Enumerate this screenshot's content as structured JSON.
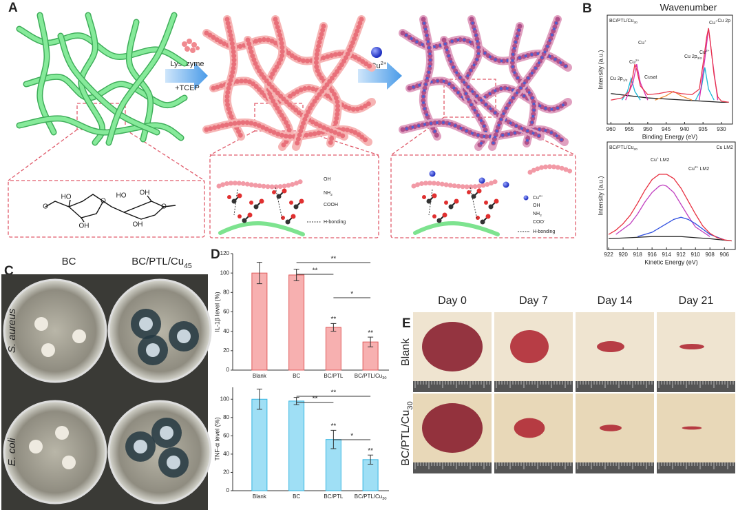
{
  "panel_a": {
    "label": "A",
    "reagent1": "Lysozyme",
    "reagent2": "+TCEP",
    "reagent3": [
      {
        "text": "Cu"
      },
      {
        "text": "2+",
        "pos": "sup"
      }
    ],
    "inset1_atoms": [
      "O",
      "HO",
      "OH",
      "O",
      "HO",
      "OH",
      "O",
      "OH"
    ],
    "inset2_legend": [
      "OH",
      [
        {
          "text": "NH"
        },
        {
          "text": "2",
          "pos": "sub"
        }
      ],
      "COOH",
      "H-bonding"
    ],
    "inset3_legend": [
      [
        {
          "text": "Cu"
        },
        {
          "text": "2+",
          "pos": "sup"
        }
      ],
      "OH",
      [
        {
          "text": "NH"
        },
        {
          "text": "2",
          "pos": "sub"
        }
      ],
      [
        {
          "text": "COO"
        },
        {
          "text": "-",
          "pos": "sup"
        }
      ],
      "H-bonding"
    ]
  },
  "panel_b": {
    "label": "B",
    "title": "Wavenumber"
  },
  "panel_c": {
    "label": "C",
    "columns": [
      "BC",
      [
        {
          "text": "BC/PTL/Cu"
        },
        {
          "text": "45",
          "pos": "sub"
        }
      ]
    ],
    "rows": [
      "S. aureus",
      "E. coli"
    ]
  },
  "panel_d": {
    "label": "D"
  },
  "panel_e": {
    "label": "E",
    "columns": [
      "Day 0",
      "Day 7",
      "Day 14",
      "Day 21"
    ],
    "rows": [
      "Blank",
      [
        {
          "text": "BC/PTL/Cu"
        },
        {
          "text": "30",
          "pos": "sub"
        }
      ]
    ]
  },
  "chart_data": [
    {
      "type": "line",
      "title": [
        {
          "text": "BC/PTL/Cu"
        },
        {
          "text": "30",
          "pos": "sub"
        }
      ],
      "subtitle": "Cu 2p",
      "xlabel": "Binding Energy (eV)",
      "ylabel": "Intensity (a.u.)",
      "xlim": [
        961,
        927
      ],
      "xticks": [
        960,
        955,
        950,
        945,
        940,
        935,
        930
      ],
      "ylim": [
        0,
        100
      ],
      "annotations": [
        [
          {
            "text": "Cu 2p"
          },
          {
            "text": "1/2",
            "pos": "sub"
          }
        ],
        [
          {
            "text": "Cu"
          },
          {
            "text": "2+",
            "pos": "sup"
          }
        ],
        [
          {
            "text": "Cu"
          },
          {
            "text": "+",
            "pos": "sup"
          }
        ],
        "Cusat",
        [
          {
            "text": "Cu 2p"
          },
          {
            "text": "3/2",
            "pos": "sub"
          }
        ],
        [
          {
            "text": "Cu"
          },
          {
            "text": "2+",
            "pos": "sup"
          }
        ],
        [
          {
            "text": "Cu"
          },
          {
            "text": "+",
            "pos": "sup"
          }
        ]
      ],
      "series": [
        {
          "color": "#222222",
          "x": [
            960,
            950,
            940,
            935,
            930,
            928
          ],
          "values": [
            28,
            24,
            22,
            21,
            20,
            20
          ]
        },
        {
          "color": "#19b6d6",
          "x": [
            957,
            955.5,
            954.5,
            953.5,
            952,
            945,
            937,
            935.5,
            934.5,
            933.5,
            932
          ],
          "values": [
            22,
            30,
            42,
            30,
            22,
            null,
            22,
            32,
            52,
            32,
            22
          ]
        },
        {
          "color": "#d62bb0",
          "x": [
            956,
            954,
            953,
            952,
            950,
            945,
            936,
            934.5,
            933.5,
            932.5,
            931
          ],
          "values": [
            22,
            38,
            55,
            38,
            22,
            null,
            22,
            60,
            88,
            60,
            22
          ]
        },
        {
          "color": "#f08a30",
          "x": [
            948,
            945,
            943,
            941,
            938
          ],
          "values": [
            22,
            26,
            30,
            26,
            22
          ]
        },
        {
          "color": "#e8344a",
          "x": [
            960,
            957,
            955,
            954,
            953.5,
            953,
            952,
            950,
            947,
            944,
            941,
            938,
            936,
            935,
            934,
            933.5,
            933,
            932,
            931,
            930,
            928
          ],
          "values": [
            22,
            24,
            30,
            45,
            55,
            50,
            35,
            27,
            28,
            30,
            28,
            27,
            32,
            55,
            80,
            88,
            75,
            45,
            25,
            21,
            20
          ]
        }
      ]
    },
    {
      "type": "line",
      "title": [
        {
          "text": "BC/PTL/Cu"
        },
        {
          "text": "20",
          "pos": "sub"
        }
      ],
      "subtitle": "Cu LM2",
      "xlabel": "Kinetic Energy (eV)",
      "ylabel": "Intensity (a.u.)",
      "xlim": [
        922.2,
        904.5
      ],
      "xticks": [
        922,
        920,
        918,
        916,
        914,
        912,
        910,
        908,
        906
      ],
      "ylim": [
        0,
        100
      ],
      "annotations": [
        [
          {
            "text": "Cu"
          },
          {
            "text": "+",
            "pos": "sup"
          },
          {
            "text": " LM2"
          }
        ],
        [
          {
            "text": "Cu"
          },
          {
            "text": "2+",
            "pos": "sup"
          },
          {
            "text": " LM2"
          }
        ]
      ],
      "series": [
        {
          "color": "#222222",
          "x": [
            922,
            916,
            912,
            908,
            905
          ],
          "values": [
            10,
            12,
            12,
            10,
            8
          ]
        },
        {
          "color": "#c040c0",
          "x": [
            921,
            919,
            918,
            917,
            916,
            915,
            914.5,
            914,
            913,
            912,
            911,
            910,
            908
          ],
          "values": [
            14,
            24,
            33,
            44,
            53,
            59,
            60,
            59,
            53,
            42,
            31,
            21,
            12
          ]
        },
        {
          "color": "#3050e0",
          "x": [
            918,
            916,
            914,
            913,
            912,
            911,
            910,
            908,
            906
          ],
          "values": [
            12,
            16,
            24,
            28,
            30,
            28,
            24,
            14,
            9
          ]
        },
        {
          "color": "#e83040",
          "x": [
            922,
            921,
            920,
            919,
            918,
            917,
            916,
            915,
            914,
            913,
            912,
            911,
            910,
            909,
            908,
            907,
            906,
            905
          ],
          "values": [
            14,
            18,
            24,
            32,
            43,
            55,
            65,
            70,
            70,
            66,
            57,
            45,
            33,
            22,
            15,
            11,
            9,
            8
          ]
        }
      ]
    },
    {
      "type": "bar",
      "ylabel": "IL-1β level (%)",
      "categories": [
        "Blank",
        "BC",
        "BC/PTL",
        [
          {
            "text": "BC/PTL/Cu"
          },
          {
            "text": "30",
            "pos": "sub"
          }
        ]
      ],
      "values": [
        100,
        98,
        44,
        29
      ],
      "errors": [
        11,
        6,
        4,
        5
      ],
      "color": "#f7b0b0",
      "edge_color": "#e05a5a",
      "ylim": [
        0,
        120
      ],
      "yticks": [
        0,
        20,
        40,
        60,
        80,
        100,
        120
      ],
      "significance": [
        "**",
        "**",
        "*",
        "**",
        "**"
      ]
    },
    {
      "type": "bar",
      "ylabel": "TNF-α level (%)",
      "categories": [
        "Blank",
        "BC",
        "BC/PTL",
        [
          {
            "text": "BC/PTL/Cu"
          },
          {
            "text": "30",
            "pos": "sub"
          }
        ]
      ],
      "values": [
        100,
        98,
        56,
        34
      ],
      "errors": [
        11,
        4,
        10,
        5
      ],
      "color": "#9fdff5",
      "edge_color": "#35b5e0",
      "ylim": [
        0,
        113
      ],
      "yticks": [
        0,
        20,
        40,
        60,
        80,
        100
      ],
      "significance": [
        "**",
        "**",
        "*",
        "**",
        "**"
      ]
    }
  ]
}
